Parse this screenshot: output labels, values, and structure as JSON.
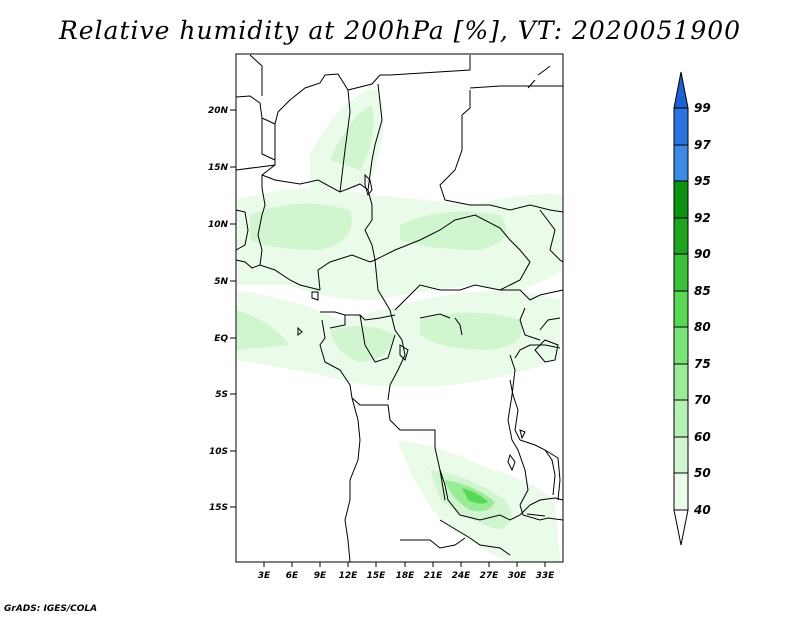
{
  "title": "Relative humidity at 200hPa [%], VT: 2020051900",
  "credit": "GrADS: IGES/COLA",
  "map": {
    "lat_ticks": [
      "20N",
      "15N",
      "10N",
      "5N",
      "EQ",
      "5S",
      "10S",
      "15S"
    ],
    "lon_ticks": [
      "3E",
      "6E",
      "9E",
      "12E",
      "15E",
      "18E",
      "21E",
      "24E",
      "27E",
      "30E",
      "33E"
    ]
  },
  "colorbar": {
    "levels": [
      "99",
      "97",
      "95",
      "92",
      "90",
      "85",
      "80",
      "75",
      "70",
      "60",
      "50",
      "40"
    ],
    "colors": {
      "above_99": "#1c5fd6",
      "97_99": "#2a74e0",
      "95_97": "#3d8be6",
      "92_95": "#0c9410",
      "90_92": "#1ea51e",
      "85_90": "#39c23a",
      "80_85": "#58d956",
      "75_80": "#78e478",
      "70_75": "#9aeb98",
      "60_70": "#b7f0b5",
      "50_60": "#d1f6cf",
      "40_50": "#ebfbea",
      "below_40": "#ffffff"
    }
  }
}
